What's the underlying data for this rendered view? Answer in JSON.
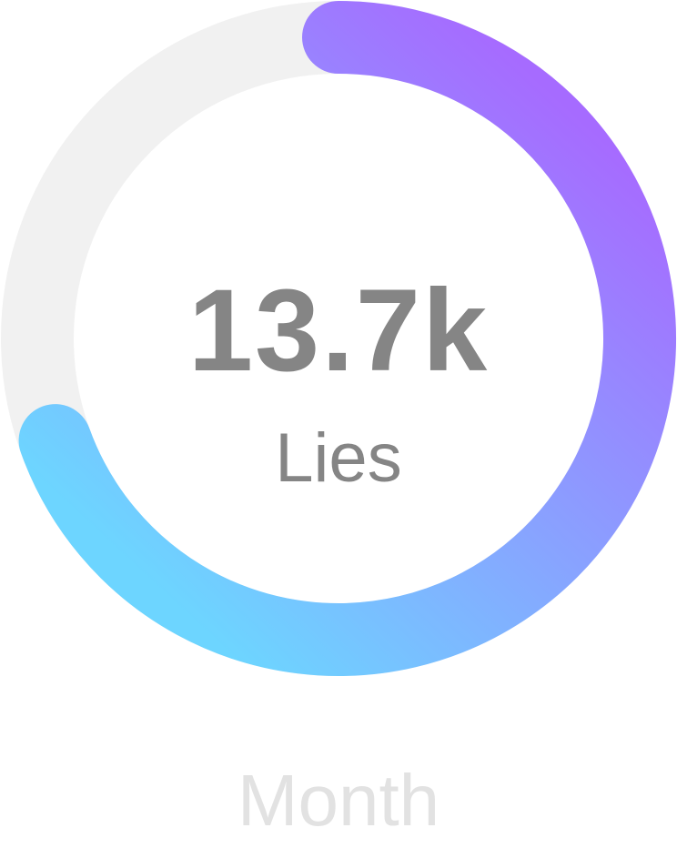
{
  "ring": {
    "value_label": "13.7k",
    "unit_label": "Lies",
    "progress_fraction": 0.695,
    "track_color": "#f1f1f1",
    "gradient_start_color": "#6dd5ff",
    "gradient_end_color": "#a66bff"
  },
  "footer": {
    "period_label": "Month"
  }
}
